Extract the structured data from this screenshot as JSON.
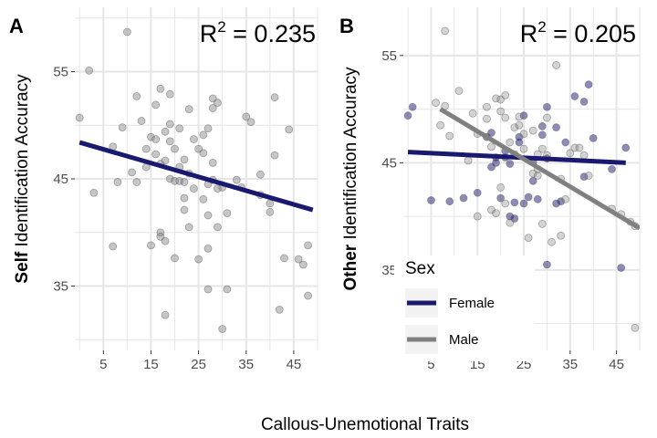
{
  "figure": {
    "shared_xlabel": "Callous-Unemotional Traits",
    "colors": {
      "female": "#191970",
      "male": "#808080",
      "grid": "#e6e6e6",
      "point_outline": "#555555"
    }
  },
  "chart_data": [
    {
      "type": "scatter",
      "panel_tag": "A",
      "r2_base": "R",
      "r2_sup": "2",
      "r2_rest": " = 0.235",
      "ylabel_bold": "Self",
      "ylabel_rest": " Identification Accuracy",
      "xlim": [
        -1,
        50
      ],
      "ylim": [
        29,
        61
      ],
      "x_ticks": [
        5,
        15,
        25,
        35,
        45
      ],
      "y_ticks": [
        35,
        45,
        55
      ],
      "series": [
        {
          "color": "#808080",
          "points": [
            [
              0,
              50.7
            ],
            [
              2,
              55.1
            ],
            [
              3,
              43.7
            ],
            [
              7,
              38.7
            ],
            [
              7,
              48
            ],
            [
              8,
              44.7
            ],
            [
              9,
              49.8
            ],
            [
              10,
              58.7
            ],
            [
              11,
              45.6
            ],
            [
              12,
              52.7
            ],
            [
              12,
              44.7
            ],
            [
              13,
              50.4
            ],
            [
              14,
              47.8
            ],
            [
              14,
              46.1
            ],
            [
              15,
              48.9
            ],
            [
              15,
              38.8
            ],
            [
              16,
              51.9
            ],
            [
              16,
              47.3
            ],
            [
              16,
              48.7
            ],
            [
              17,
              46.4
            ],
            [
              17,
              40
            ],
            [
              17,
              39.6
            ],
            [
              17,
              53.4
            ],
            [
              18,
              49.4
            ],
            [
              18,
              46.7
            ],
            [
              18,
              39.2
            ],
            [
              18,
              32.3
            ],
            [
              19,
              45
            ],
            [
              19,
              52.9
            ],
            [
              19,
              50.1
            ],
            [
              19,
              48.5
            ],
            [
              20,
              44.8
            ],
            [
              20,
              47.8
            ],
            [
              20,
              37.6
            ],
            [
              21,
              46.1
            ],
            [
              21,
              49.7
            ],
            [
              21,
              44.8
            ],
            [
              22,
              42.1
            ],
            [
              22,
              44.7
            ],
            [
              22,
              43.2
            ],
            [
              22,
              46.8
            ],
            [
              23,
              51.5
            ],
            [
              23,
              45.5
            ],
            [
              23,
              40.5
            ],
            [
              24,
              48.7
            ],
            [
              24,
              44.1
            ],
            [
              25,
              47.8
            ],
            [
              25,
              37.5
            ],
            [
              26,
              49.1
            ],
            [
              26,
              47.4
            ],
            [
              26,
              43.1
            ],
            [
              27,
              44.5
            ],
            [
              27,
              41.6
            ],
            [
              27,
              38.5
            ],
            [
              27,
              49.7
            ],
            [
              27,
              34.7
            ],
            [
              28,
              51.6
            ],
            [
              28,
              44.9
            ],
            [
              28,
              46.5
            ],
            [
              28,
              52.5
            ],
            [
              29,
              44.1
            ],
            [
              29,
              40.5
            ],
            [
              29,
              52.1
            ],
            [
              30,
              31
            ],
            [
              30,
              44.2
            ],
            [
              31,
              34.7
            ],
            [
              31,
              41.8
            ],
            [
              33,
              44.9
            ],
            [
              34,
              44.2
            ],
            [
              35,
              50.8
            ],
            [
              36,
              50.3
            ],
            [
              38,
              45.4
            ],
            [
              38,
              43.5
            ],
            [
              40,
              42.7
            ],
            [
              40,
              41.9
            ],
            [
              41,
              52.6
            ],
            [
              41,
              47.2
            ],
            [
              42,
              32.8
            ],
            [
              43,
              37.6
            ],
            [
              44,
              49.6
            ],
            [
              46,
              37.5
            ],
            [
              47,
              37
            ],
            [
              48,
              38.8
            ],
            [
              48,
              34.1
            ]
          ]
        }
      ],
      "fits": [
        {
          "color": "#191970",
          "x": [
            0,
            49
          ],
          "y": [
            48.4,
            42.1
          ]
        }
      ]
    },
    {
      "type": "scatter",
      "panel_tag": "B",
      "r2_base": "R",
      "r2_sup": "2",
      "r2_rest": " = 0.205",
      "ylabel_bold": "Other",
      "ylabel_rest": " Identification Accuracy",
      "xlim": [
        -1,
        50
      ],
      "ylim": [
        27.5,
        59.5
      ],
      "x_ticks": [
        5,
        15,
        25,
        35,
        45
      ],
      "y_ticks": [
        35,
        45,
        55
      ],
      "legend": {
        "title": "Sex",
        "entries": [
          {
            "label": "Female",
            "color": "#191970"
          },
          {
            "label": "Male",
            "color": "#808080"
          }
        ]
      },
      "series": [
        {
          "name": "Female",
          "color": "#191970",
          "points": [
            [
              0,
              49.4
            ],
            [
              1,
              50.2
            ],
            [
              5,
              41.5
            ],
            [
              9,
              41.4
            ],
            [
              12,
              41.7
            ],
            [
              15,
              42.2
            ],
            [
              17,
              47.4
            ],
            [
              18,
              47.8
            ],
            [
              18,
              44.6
            ],
            [
              19,
              45.5
            ],
            [
              19,
              45
            ],
            [
              20,
              41.7
            ],
            [
              21,
              46.1
            ],
            [
              21,
              45.5
            ],
            [
              22,
              44.9
            ],
            [
              22,
              40
            ],
            [
              23,
              41.3
            ],
            [
              23,
              39.8
            ],
            [
              24,
              46.9
            ],
            [
              24,
              47.4
            ],
            [
              25,
              49.4
            ],
            [
              25,
              41.2
            ],
            [
              26,
              41.8
            ],
            [
              27,
              45.1
            ],
            [
              27,
              43.3
            ],
            [
              28,
              41.6
            ],
            [
              29,
              48.4
            ],
            [
              29,
              47.6
            ],
            [
              30,
              50.2
            ],
            [
              30,
              45.4
            ],
            [
              30,
              35.5
            ],
            [
              32,
              48.3
            ],
            [
              32,
              41.2
            ],
            [
              33,
              41.4
            ],
            [
              34,
              46.9
            ],
            [
              36,
              51.2
            ],
            [
              38,
              50.7
            ],
            [
              38,
              43.7
            ],
            [
              39,
              52.3
            ],
            [
              40,
              47.3
            ],
            [
              44,
              44.4
            ],
            [
              46,
              35.2
            ],
            [
              47,
              46.4
            ]
          ]
        },
        {
          "name": "Male",
          "color": "#808080",
          "points": [
            [
              6,
              50.6
            ],
            [
              7,
              48.5
            ],
            [
              8,
              57.3
            ],
            [
              8,
              50.3
            ],
            [
              9,
              47.5
            ],
            [
              11,
              51.7
            ],
            [
              13,
              45.2
            ],
            [
              14,
              49.6
            ],
            [
              15,
              47.7
            ],
            [
              15,
              40
            ],
            [
              17,
              50.2
            ],
            [
              17,
              49.1
            ],
            [
              18,
              46.5
            ],
            [
              18,
              40.6
            ],
            [
              19,
              51
            ],
            [
              19,
              40.3
            ],
            [
              20,
              49.8
            ],
            [
              20,
              50.9
            ],
            [
              20,
              42.7
            ],
            [
              21,
              51.3
            ],
            [
              21,
              49.2
            ],
            [
              21,
              41.2
            ],
            [
              22,
              46.9
            ],
            [
              22,
              39.4
            ],
            [
              23,
              48.3
            ],
            [
              23,
              45.8
            ],
            [
              24,
              49.3
            ],
            [
              24,
              48.5
            ],
            [
              25,
              47.7
            ],
            [
              25,
              46.3
            ],
            [
              26,
              38
            ],
            [
              27,
              48
            ],
            [
              27,
              44
            ],
            [
              28,
              45.8
            ],
            [
              28,
              44.4
            ],
            [
              28,
              43.8
            ],
            [
              29,
              46.3
            ],
            [
              29,
              39.3
            ],
            [
              30,
              49.2
            ],
            [
              30,
              45.7
            ],
            [
              31,
              37.6
            ],
            [
              32,
              54.1
            ],
            [
              33,
              38.2
            ],
            [
              33,
              43.5
            ],
            [
              34,
              41.6
            ],
            [
              35,
              45.9
            ],
            [
              36,
              46.4
            ],
            [
              37,
              46.4
            ],
            [
              38,
              45.7
            ],
            [
              39,
              43.8
            ],
            [
              44,
              40.7
            ],
            [
              46,
              40.2
            ],
            [
              49,
              39.1
            ],
            [
              49,
              29.6
            ],
            [
              48,
              39.5
            ]
          ]
        }
      ],
      "fits": [
        {
          "color": "#191970",
          "x": [
            0,
            47
          ],
          "y": [
            46.0,
            45.0
          ]
        },
        {
          "color": "#808080",
          "x": [
            7,
            50
          ],
          "y": [
            50.0,
            38.9
          ]
        }
      ]
    }
  ]
}
